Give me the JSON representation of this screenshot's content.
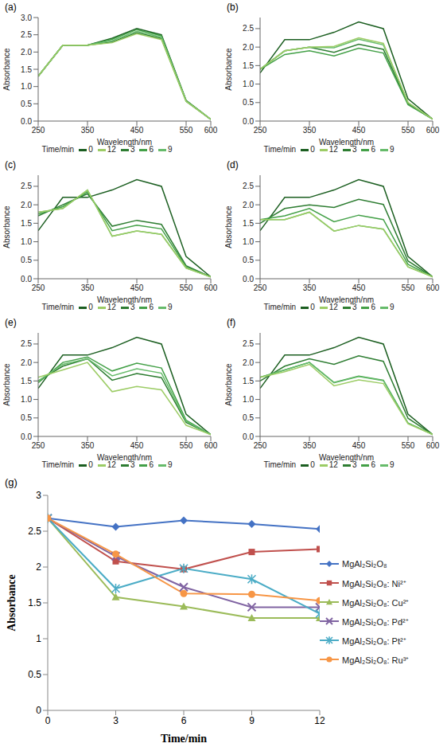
{
  "chart_data": [
    {
      "type": "line",
      "panel": "(a)",
      "x_label": "Wavelength/nm",
      "y_label": "Absorbance",
      "legend_title": "Time/min",
      "legend": "bottom",
      "x": [
        250,
        300,
        350,
        400,
        450,
        500,
        550,
        600
      ],
      "xlim": [
        250,
        600
      ],
      "xticks": [
        250,
        350,
        450,
        550,
        600
      ],
      "ylim": [
        0,
        3
      ],
      "yticks": [
        {
          "value": 0,
          "label": "0.0"
        },
        0.5,
        {
          "value": 1,
          "label": "1.0"
        },
        1.5,
        {
          "value": 2,
          "label": "2.0"
        },
        2.5,
        {
          "value": 3,
          "label": "3.0"
        }
      ],
      "series": [
        {
          "name": "0",
          "color": "#1b5e20",
          "values": [
            1.3,
            2.2,
            2.2,
            2.4,
            2.68,
            2.5,
            0.6,
            0.05
          ]
        },
        {
          "name": "3",
          "color": "#2e7d32",
          "values": [
            1.3,
            2.2,
            2.2,
            2.29,
            2.56,
            2.39,
            0.57,
            0.05
          ]
        },
        {
          "name": "6",
          "color": "#43a047",
          "values": [
            1.3,
            2.2,
            2.2,
            2.37,
            2.65,
            2.47,
            0.59,
            0.05
          ]
        },
        {
          "name": "9",
          "color": "#66bb6a",
          "values": [
            1.3,
            2.2,
            2.2,
            2.33,
            2.6,
            2.43,
            0.58,
            0.05
          ]
        },
        {
          "name": "12",
          "color": "#9ccc65",
          "values": [
            1.3,
            2.2,
            2.2,
            2.27,
            2.53,
            2.36,
            0.57,
            0.05
          ]
        }
      ]
    },
    {
      "type": "line",
      "panel": "(b)",
      "x_label": "Wavelength/nm",
      "y_label": "Absorbance",
      "legend_title": "Time/min",
      "legend": "bottom",
      "x": [
        250,
        300,
        350,
        400,
        450,
        500,
        550,
        600
      ],
      "xlim": [
        250,
        600
      ],
      "xticks": [
        250,
        350,
        450,
        550,
        600
      ],
      "ylim": [
        0,
        2.8
      ],
      "yticks": [
        {
          "value": 0,
          "label": "0.0"
        },
        0.5,
        {
          "value": 1,
          "label": "1.0"
        },
        1.5,
        {
          "value": 2,
          "label": "2.0"
        },
        2.5
      ],
      "series": [
        {
          "name": "0",
          "color": "#1b5e20",
          "values": [
            1.3,
            2.2,
            2.2,
            2.4,
            2.68,
            2.5,
            0.6,
            0.05
          ]
        },
        {
          "name": "3",
          "color": "#2e7d32",
          "values": [
            1.4,
            1.9,
            2.0,
            1.86,
            2.08,
            1.94,
            0.47,
            0.05
          ]
        },
        {
          "name": "6",
          "color": "#43a047",
          "values": [
            1.4,
            1.8,
            1.9,
            1.76,
            1.97,
            1.84,
            0.44,
            0.05
          ]
        },
        {
          "name": "9",
          "color": "#66bb6a",
          "values": [
            1.4,
            1.9,
            2.0,
            1.98,
            2.21,
            2.06,
            0.5,
            0.05
          ]
        },
        {
          "name": "12",
          "color": "#9ccc65",
          "values": [
            1.4,
            1.9,
            2.0,
            2.02,
            2.25,
            2.1,
            0.5,
            0.05
          ]
        }
      ]
    },
    {
      "type": "line",
      "panel": "(c)",
      "x_label": "Wavelength/nm",
      "y_label": "Absorbance",
      "legend_title": "Time/min",
      "legend": "bottom",
      "x": [
        250,
        300,
        350,
        400,
        450,
        500,
        550,
        600
      ],
      "xlim": [
        250,
        600
      ],
      "xticks": [
        250,
        350,
        450,
        550,
        600
      ],
      "ylim": [
        0,
        2.8
      ],
      "yticks": [
        {
          "value": 0,
          "label": "0.0"
        },
        0.5,
        {
          "value": 1,
          "label": "1.0"
        },
        1.5,
        {
          "value": 2,
          "label": "2.0"
        },
        2.5
      ],
      "series": [
        {
          "name": "0",
          "color": "#1b5e20",
          "values": [
            1.3,
            2.2,
            2.2,
            2.4,
            2.68,
            2.5,
            0.6,
            0.05
          ]
        },
        {
          "name": "3",
          "color": "#2e7d32",
          "values": [
            1.7,
            2.0,
            2.3,
            1.42,
            1.58,
            1.47,
            0.35,
            0.05
          ]
        },
        {
          "name": "6",
          "color": "#43a047",
          "values": [
            1.75,
            1.95,
            2.35,
            1.3,
            1.45,
            1.35,
            0.32,
            0.05
          ]
        },
        {
          "name": "9",
          "color": "#66bb6a",
          "values": [
            1.8,
            1.9,
            2.4,
            1.15,
            1.29,
            1.2,
            0.29,
            0.05
          ]
        },
        {
          "name": "12",
          "color": "#9ccc65",
          "values": [
            1.8,
            1.9,
            2.4,
            1.15,
            1.29,
            1.2,
            0.29,
            0.05
          ]
        }
      ]
    },
    {
      "type": "line",
      "panel": "(d)",
      "x_label": "Wavelength/nm",
      "y_label": "Absorbance",
      "legend_title": "Time/min",
      "legend": "bottom",
      "x": [
        250,
        300,
        350,
        400,
        450,
        500,
        550,
        600
      ],
      "xlim": [
        250,
        600
      ],
      "xticks": [
        250,
        350,
        450,
        550,
        600
      ],
      "ylim": [
        0,
        2.8
      ],
      "yticks": [
        {
          "value": 0,
          "label": "0.0"
        },
        0.5,
        {
          "value": 1,
          "label": "1.0"
        },
        1.5,
        {
          "value": 2,
          "label": "2.0"
        },
        2.5
      ],
      "series": [
        {
          "name": "0",
          "color": "#1b5e20",
          "values": [
            1.3,
            2.2,
            2.2,
            2.4,
            2.68,
            2.5,
            0.6,
            0.05
          ]
        },
        {
          "name": "3",
          "color": "#2e7d32",
          "values": [
            1.5,
            1.9,
            2.0,
            1.93,
            2.15,
            2.01,
            0.48,
            0.05
          ]
        },
        {
          "name": "6",
          "color": "#43a047",
          "values": [
            1.6,
            1.7,
            1.9,
            1.54,
            1.72,
            1.6,
            0.39,
            0.05
          ]
        },
        {
          "name": "9",
          "color": "#66bb6a",
          "values": [
            1.6,
            1.6,
            1.8,
            1.29,
            1.44,
            1.34,
            0.32,
            0.05
          ]
        },
        {
          "name": "12",
          "color": "#9ccc65",
          "values": [
            1.6,
            1.6,
            1.8,
            1.29,
            1.44,
            1.34,
            0.32,
            0.05
          ]
        }
      ]
    },
    {
      "type": "line",
      "panel": "(e)",
      "x_label": "Wavelength/nm",
      "y_label": "Absorbance",
      "legend_title": "Time/min",
      "legend": "bottom",
      "x": [
        250,
        300,
        350,
        400,
        450,
        500,
        550,
        600
      ],
      "xlim": [
        250,
        600
      ],
      "xticks": [
        250,
        350,
        450,
        550,
        600
      ],
      "ylim": [
        0,
        2.8
      ],
      "yticks": [
        {
          "value": 0,
          "label": "0.0"
        },
        0.5,
        {
          "value": 1,
          "label": "1.0"
        },
        1.5,
        {
          "value": 2,
          "label": "2.0"
        },
        2.5
      ],
      "series": [
        {
          "name": "0",
          "color": "#1b5e20",
          "values": [
            1.3,
            2.2,
            2.2,
            2.4,
            2.68,
            2.5,
            0.6,
            0.05
          ]
        },
        {
          "name": "3",
          "color": "#2e7d32",
          "values": [
            1.5,
            1.9,
            2.1,
            1.52,
            1.7,
            1.59,
            0.38,
            0.05
          ]
        },
        {
          "name": "6",
          "color": "#43a047",
          "values": [
            1.45,
            2.0,
            2.15,
            1.77,
            1.98,
            1.85,
            0.44,
            0.05
          ]
        },
        {
          "name": "9",
          "color": "#66bb6a",
          "values": [
            1.5,
            1.95,
            2.1,
            1.64,
            1.83,
            1.71,
            0.41,
            0.05
          ]
        },
        {
          "name": "12",
          "color": "#9ccc65",
          "values": [
            1.6,
            1.8,
            2.0,
            1.21,
            1.35,
            1.26,
            0.3,
            0.05
          ]
        }
      ]
    },
    {
      "type": "line",
      "panel": "(f)",
      "x_label": "Wavelength/nm",
      "y_label": "Absorbance",
      "legend_title": "Time/min",
      "legend": "bottom",
      "x": [
        250,
        300,
        350,
        400,
        450,
        500,
        550,
        600
      ],
      "xlim": [
        250,
        600
      ],
      "xticks": [
        250,
        350,
        450,
        550,
        600
      ],
      "ylim": [
        0,
        2.8
      ],
      "yticks": [
        {
          "value": 0,
          "label": "0.0"
        },
        0.5,
        {
          "value": 1,
          "label": "1.0"
        },
        1.5,
        {
          "value": 2,
          "label": "2.0"
        },
        2.5
      ],
      "series": [
        {
          "name": "0",
          "color": "#1b5e20",
          "values": [
            1.3,
            2.2,
            2.2,
            2.4,
            2.68,
            2.5,
            0.6,
            0.05
          ]
        },
        {
          "name": "3",
          "color": "#2e7d32",
          "values": [
            1.5,
            1.9,
            2.1,
            1.95,
            2.18,
            2.03,
            0.49,
            0.05
          ]
        },
        {
          "name": "6",
          "color": "#43a047",
          "values": [
            1.6,
            1.8,
            2.0,
            1.46,
            1.63,
            1.52,
            0.36,
            0.05
          ]
        },
        {
          "name": "9",
          "color": "#66bb6a",
          "values": [
            1.6,
            1.8,
            2.0,
            1.45,
            1.62,
            1.51,
            0.36,
            0.05
          ]
        },
        {
          "name": "12",
          "color": "#9ccc65",
          "values": [
            1.6,
            1.75,
            1.95,
            1.37,
            1.53,
            1.43,
            0.34,
            0.05
          ]
        }
      ]
    },
    {
      "type": "line",
      "panel": "(g)",
      "x_label": "Time/min",
      "y_label": "Absorbance",
      "legend": "right",
      "x": [
        0,
        3,
        6,
        9,
        12
      ],
      "xlim": [
        0,
        12
      ],
      "xticks": [
        0,
        3,
        6,
        9,
        12
      ],
      "ylim": [
        0,
        3
      ],
      "yticks": [
        0,
        0.5,
        1,
        1.5,
        2,
        2.5,
        3
      ],
      "series": [
        {
          "name": "MgAl₂Si₂O₈",
          "color": "#4472c4",
          "marker": "diamond",
          "values": [
            2.68,
            2.56,
            2.65,
            2.6,
            2.53
          ]
        },
        {
          "name": "MgAl₂Si₂O₈: Ni²⁺",
          "color": "#c0504d",
          "marker": "square",
          "values": [
            2.68,
            2.08,
            1.97,
            2.21,
            2.25
          ]
        },
        {
          "name": "MgAl₂Si₂O₈: Cu²⁺",
          "color": "#9bbb59",
          "marker": "triangle",
          "values": [
            2.68,
            1.58,
            1.45,
            1.29,
            1.29
          ]
        },
        {
          "name": "MgAl₂Si₂O₈: Pd²⁺",
          "color": "#8064a2",
          "marker": "cross",
          "values": [
            2.68,
            2.15,
            1.72,
            1.44,
            1.44
          ]
        },
        {
          "name": "MgAl₂Si₂O₈: Pt²⁺",
          "color": "#4bacc6",
          "marker": "star",
          "values": [
            2.68,
            1.7,
            1.98,
            1.83,
            1.35
          ]
        },
        {
          "name": "MgAl₂Si₂O₈: Ru³⁺",
          "color": "#f79646",
          "marker": "circle",
          "values": [
            2.68,
            2.18,
            1.63,
            1.62,
            1.53
          ]
        }
      ]
    }
  ]
}
